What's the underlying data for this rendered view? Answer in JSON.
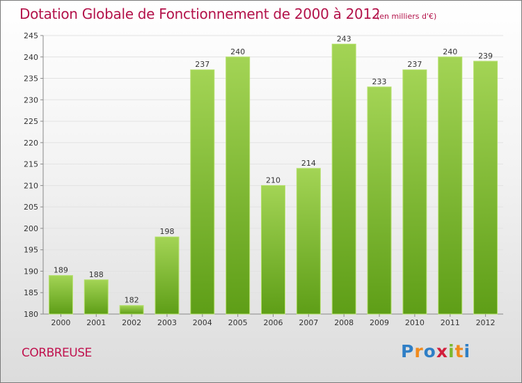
{
  "title": "Dotation Globale de Fonctionnement de 2000 à 2012",
  "unit_note": "(en milliers d'€)",
  "commune": "CORBREUSE",
  "logo": {
    "letters": [
      "P",
      "r",
      "o",
      "x",
      "i",
      "t",
      "i"
    ],
    "colors": [
      "#2f7fc6",
      "#f08a1c",
      "#2f7fc6",
      "#d21f3c",
      "#7cb82f",
      "#f08a1c",
      "#2f7fc6"
    ]
  },
  "chart_data": {
    "type": "bar",
    "categories": [
      "2000",
      "2001",
      "2002",
      "2003",
      "2004",
      "2005",
      "2006",
      "2007",
      "2008",
      "2009",
      "2010",
      "2011",
      "2012"
    ],
    "values": [
      189,
      188,
      182,
      198,
      237,
      240,
      210,
      214,
      243,
      233,
      237,
      240,
      239
    ],
    "ylim": [
      180,
      245
    ],
    "yticks": [
      180,
      185,
      190,
      195,
      200,
      205,
      210,
      215,
      220,
      225,
      230,
      235,
      240,
      245
    ],
    "grid": true,
    "bar_color_top": "#a3d455",
    "bar_color_bottom": "#5e9e17"
  }
}
